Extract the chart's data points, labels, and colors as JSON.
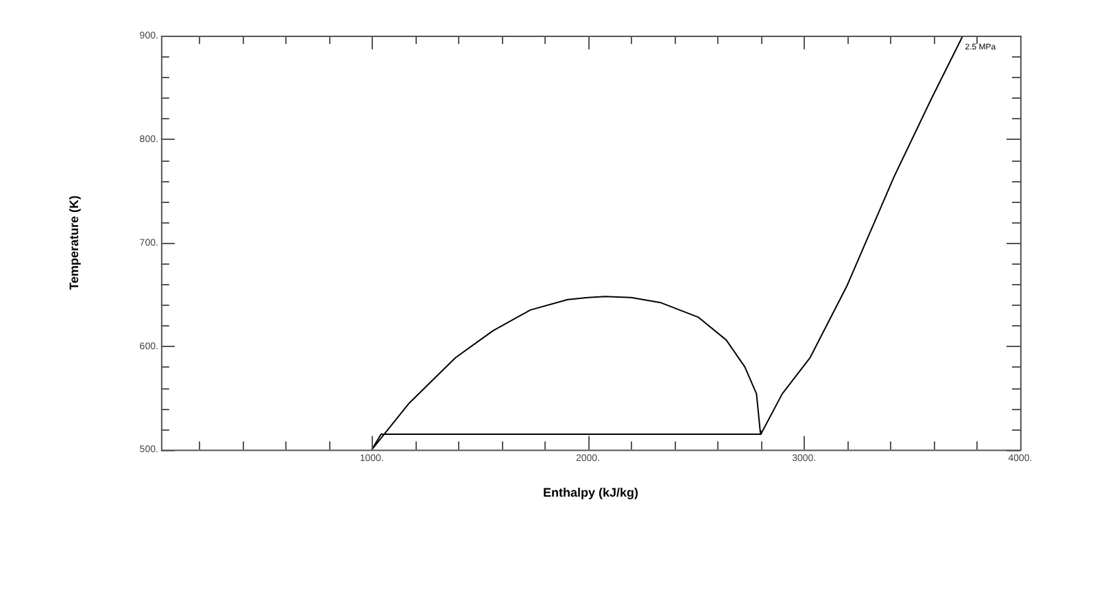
{
  "chart_data": {
    "type": "line",
    "xlabel": "Enthalpy (kJ/kg)",
    "ylabel": "Temperature (K)",
    "xlim": [
      25,
      4000
    ],
    "ylim": [
      500,
      900
    ],
    "xticks": [
      {
        "value": 200,
        "label": null
      },
      {
        "value": 400,
        "label": null
      },
      {
        "value": 600,
        "label": null
      },
      {
        "value": 800,
        "label": null
      },
      {
        "value": 1000,
        "label": "1000."
      },
      {
        "value": 1200,
        "label": null
      },
      {
        "value": 1400,
        "label": null
      },
      {
        "value": 1600,
        "label": null
      },
      {
        "value": 1800,
        "label": null
      },
      {
        "value": 2000,
        "label": "2000."
      },
      {
        "value": 2200,
        "label": null
      },
      {
        "value": 2400,
        "label": null
      },
      {
        "value": 2600,
        "label": null
      },
      {
        "value": 2800,
        "label": null
      },
      {
        "value": 3000,
        "label": "3000."
      },
      {
        "value": 3200,
        "label": null
      },
      {
        "value": 3400,
        "label": null
      },
      {
        "value": 3600,
        "label": null
      },
      {
        "value": 3800,
        "label": null
      },
      {
        "value": 4000,
        "label": "4000."
      }
    ],
    "yticks": [
      {
        "value": 500,
        "label": "500."
      },
      {
        "value": 520,
        "label": null
      },
      {
        "value": 540,
        "label": null
      },
      {
        "value": 560,
        "label": null
      },
      {
        "value": 580,
        "label": null
      },
      {
        "value": 600,
        "label": "600."
      },
      {
        "value": 620,
        "label": null
      },
      {
        "value": 640,
        "label": null
      },
      {
        "value": 660,
        "label": null
      },
      {
        "value": 680,
        "label": null
      },
      {
        "value": 700,
        "label": "700."
      },
      {
        "value": 720,
        "label": null
      },
      {
        "value": 740,
        "label": null
      },
      {
        "value": 760,
        "label": null
      },
      {
        "value": 780,
        "label": null
      },
      {
        "value": 800,
        "label": "800."
      },
      {
        "value": 820,
        "label": null
      },
      {
        "value": 840,
        "label": null
      },
      {
        "value": 860,
        "label": null
      },
      {
        "value": 880,
        "label": null
      },
      {
        "value": 900,
        "label": "900."
      }
    ],
    "grid": false,
    "legend": false,
    "marker": "none",
    "line_style": "solid",
    "series": [
      {
        "color": "#000000",
        "x": [
          1000,
          1173,
          1388,
          1561,
          1734,
          1906,
          2000,
          2079,
          2200,
          2338,
          2511,
          2640,
          2726,
          2780,
          2797,
          2800
        ],
        "values": [
          500,
          545,
          589,
          615,
          635,
          645,
          647,
          648,
          647,
          642,
          628,
          606,
          580,
          554,
          518,
          515
        ]
      },
      {
        "color": "#000000",
        "x": [
          1000,
          1043,
          2800,
          2899,
          3028,
          3200,
          3417,
          3589,
          3730,
          3735
        ],
        "values": [
          500,
          515,
          515,
          554,
          589,
          659,
          764,
          839,
          898,
          900
        ]
      }
    ],
    "annotations": [
      {
        "text": "2.5 MPa",
        "x": 3745,
        "y": 893
      }
    ]
  }
}
